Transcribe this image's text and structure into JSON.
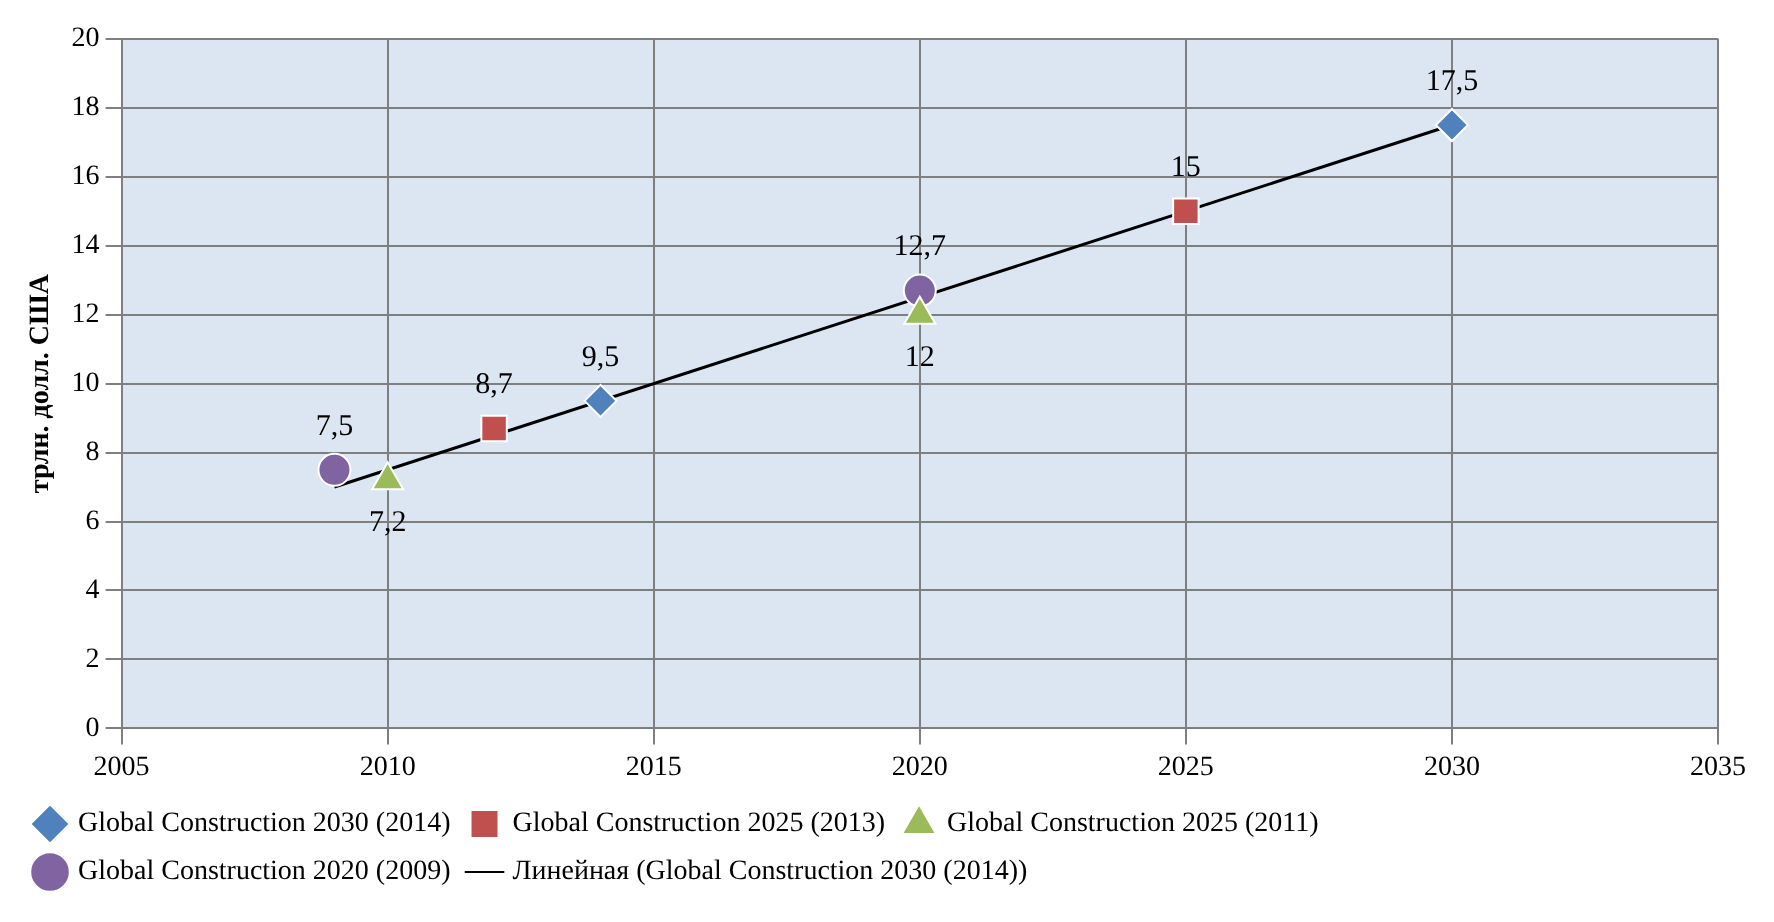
{
  "chart_data": {
    "type": "scatter",
    "ylabel": "трлн. долл. США",
    "xlim": [
      2005,
      2035
    ],
    "xticks": [
      2005,
      2010,
      2015,
      2020,
      2025,
      2030,
      2035
    ],
    "ylim": [
      0,
      20
    ],
    "yticks": [
      0,
      2,
      4,
      6,
      8,
      10,
      12,
      14,
      16,
      18,
      20
    ],
    "grid": true,
    "legend": "bottom",
    "series": [
      {
        "name": "Global Construction 2030 (2014)",
        "color": "#4f81bd",
        "marker": "diamond",
        "x": [
          2014,
          2030
        ],
        "values": [
          9.5,
          17.5
        ],
        "value_labels": [
          "9,5",
          "17,5"
        ]
      },
      {
        "name": "Global Construction 2025 (2013)",
        "color": "#c0504d",
        "marker": "square",
        "x": [
          2012,
          2025
        ],
        "values": [
          8.7,
          15
        ],
        "value_labels": [
          "8,7",
          "15"
        ]
      },
      {
        "name": "Global Construction 2025 (2011)",
        "color": "#9bbb59",
        "marker": "triangle",
        "x": [
          2010,
          2020
        ],
        "values": [
          7.2,
          12
        ],
        "value_labels": [
          "7,2",
          "12"
        ]
      },
      {
        "name": "Global Construction 2020 (2009)",
        "color": "#8064a2",
        "marker": "circle",
        "x": [
          2009,
          2020
        ],
        "values": [
          7.5,
          12.7
        ],
        "value_labels": [
          "7,5",
          "12,7"
        ]
      },
      {
        "name": "Линейная (Global Construction 2030 (2014))",
        "type": "line",
        "color": "#000000",
        "marker": "none",
        "x": [
          2009,
          2030
        ],
        "values": [
          7,
          17.5
        ]
      }
    ]
  }
}
